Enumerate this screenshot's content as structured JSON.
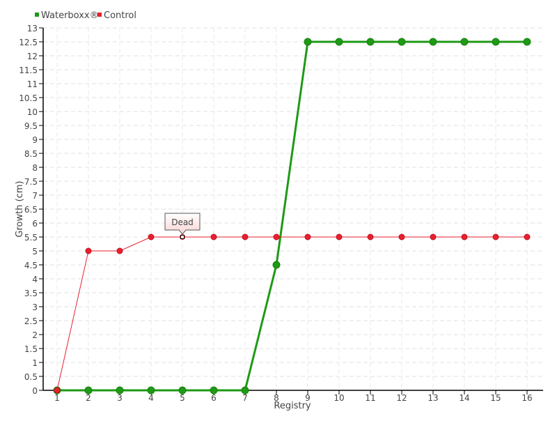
{
  "chart_data": {
    "type": "line",
    "title": "",
    "xlabel": "Registry",
    "ylabel": "Growth (cm)",
    "x": [
      1,
      2,
      3,
      4,
      5,
      6,
      7,
      8,
      9,
      10,
      11,
      12,
      13,
      14,
      15,
      16
    ],
    "xlim": [
      1,
      16
    ],
    "ylim": [
      0,
      13
    ],
    "ytick_step": 0.5,
    "grid": true,
    "legend_position": "top-left",
    "series": [
      {
        "name": "Waterboxx®",
        "color": "#1e9a14",
        "values": [
          0,
          0,
          0,
          0,
          0,
          0,
          0,
          4.5,
          12.5,
          12.5,
          12.5,
          12.5,
          12.5,
          12.5,
          12.5,
          12.5
        ]
      },
      {
        "name": "Control",
        "color": "#e8202e",
        "values": [
          0,
          5,
          5,
          5.5,
          5.5,
          5.5,
          5.5,
          5.5,
          5.5,
          5.5,
          5.5,
          5.5,
          5.5,
          5.5,
          5.5,
          5.5
        ]
      }
    ],
    "annotations": [
      {
        "series": "Control",
        "x": 5,
        "y": 5.5,
        "text": "Dead"
      }
    ]
  }
}
